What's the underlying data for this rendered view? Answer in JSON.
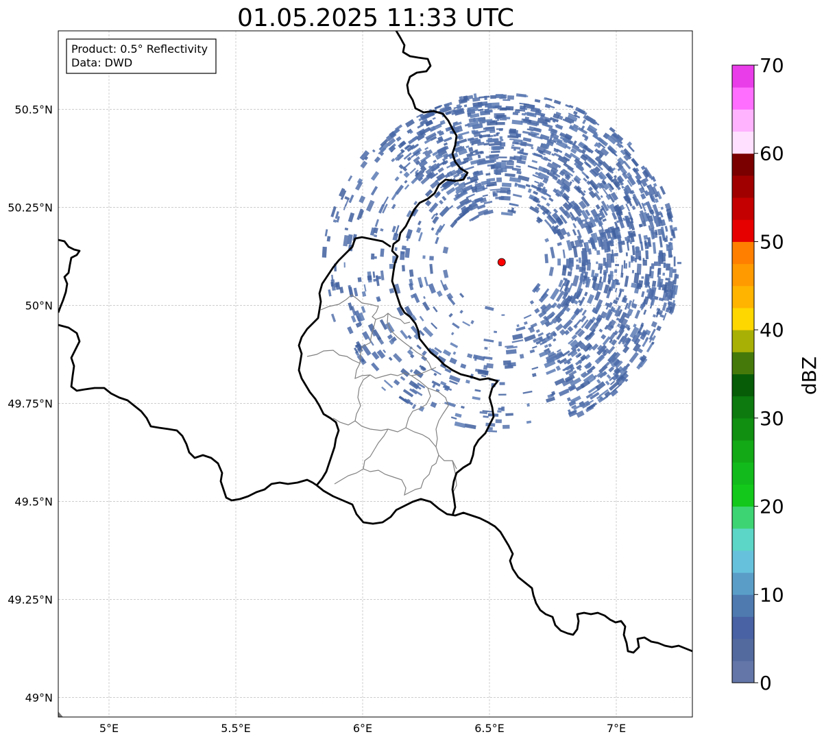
{
  "title": "01.05.2025 11:33 UTC",
  "info": {
    "product": "Product: 0.5° Reflectivity",
    "data": "Data: DWD"
  },
  "map": {
    "lon_range": [
      4.8,
      7.3
    ],
    "lat_range": [
      48.95,
      50.7
    ],
    "lon_ticks": [
      {
        "value": 5.0,
        "label": "5°E"
      },
      {
        "value": 5.5,
        "label": "5.5°E"
      },
      {
        "value": 6.0,
        "label": "6°E"
      },
      {
        "value": 6.5,
        "label": "6.5°E"
      },
      {
        "value": 7.0,
        "label": "7°E"
      }
    ],
    "lat_ticks": [
      {
        "value": 50.5,
        "label": "50.5°N"
      },
      {
        "value": 50.25,
        "label": "50.25°N"
      },
      {
        "value": 50.0,
        "label": "50°N"
      },
      {
        "value": 49.75,
        "label": "49.75°N"
      },
      {
        "value": 49.5,
        "label": "49.5°N"
      },
      {
        "value": 49.25,
        "label": "49.25°N"
      },
      {
        "value": 49.0,
        "label": "49°N"
      }
    ],
    "radar_site": {
      "lon": 6.548,
      "lat": 50.11,
      "color": "#ff0000"
    },
    "echo_color": "#4a6aa8",
    "border_color": "#000000",
    "admin_color": "#808080"
  },
  "colorbar": {
    "label": "dBZ",
    "min": 0,
    "max": 70,
    "ticks": [
      {
        "value": 0,
        "label": "0"
      },
      {
        "value": 10,
        "label": "10"
      },
      {
        "value": 20,
        "label": "20"
      },
      {
        "value": 30,
        "label": "30"
      },
      {
        "value": 40,
        "label": "40"
      },
      {
        "value": 50,
        "label": "50"
      },
      {
        "value": 60,
        "label": "60"
      },
      {
        "value": 70,
        "label": "70"
      }
    ],
    "colors": [
      "#6476a8",
      "#536a9f",
      "#4862a3",
      "#4e7ab0",
      "#5a9ec7",
      "#66c2dc",
      "#5cd6c6",
      "#3dd573",
      "#13c81a",
      "#12bb1b",
      "#13a816",
      "#108f11",
      "#0c7a0e",
      "#075c08",
      "#457a0a",
      "#a8b005",
      "#ffd700",
      "#ffb400",
      "#ff9a00",
      "#ff7f00",
      "#e60000",
      "#c40000",
      "#a00000",
      "#7a0000",
      "#ffe0ff",
      "#ffb3ff",
      "#ff6eff",
      "#e93de9"
    ]
  }
}
